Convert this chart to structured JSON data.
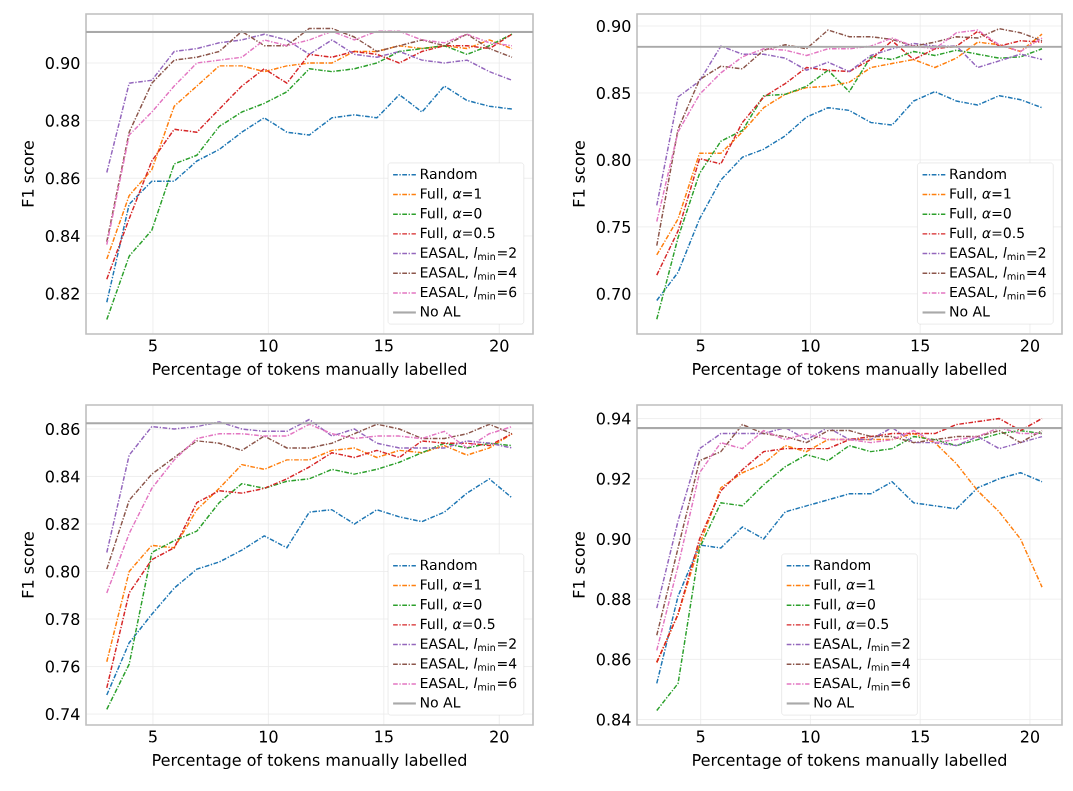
{
  "chart_data": [
    {
      "type": "line",
      "xlabel": "Percentage of tokens manually labelled",
      "ylabel": "F1 score",
      "xlim": [
        2.1,
        21.46
      ],
      "ylim": [
        0.806,
        0.917
      ],
      "xticks": [
        5,
        10,
        15,
        20
      ],
      "yticks": [
        {
          "value": 0.82,
          "label": "0.82"
        },
        {
          "value": 0.84,
          "label": "0.84"
        },
        {
          "value": 0.86,
          "label": "0.86"
        },
        {
          "value": 0.88,
          "label": "0.88"
        },
        {
          "value": 0.9,
          "label": "0.90"
        }
      ],
      "grid": true,
      "legend": "bottom right",
      "line_style": "dashdot",
      "x": [
        3,
        3.97,
        4.95,
        5.92,
        6.9,
        7.87,
        8.85,
        9.82,
        10.8,
        11.77,
        12.75,
        13.72,
        14.7,
        15.67,
        16.65,
        17.62,
        18.6,
        19.57,
        20.55
      ],
      "series": [
        {
          "name": "Random",
          "color": "#1f77b4",
          "values": [
            0.817,
            0.851,
            0.859,
            0.859,
            0.866,
            0.87,
            0.876,
            0.881,
            0.876,
            0.875,
            0.881,
            0.882,
            0.881,
            0.889,
            0.883,
            0.892,
            0.887,
            0.885,
            0.884
          ]
        },
        {
          "name": "Full, *α*=1",
          "color": "#ff7f0e",
          "values": [
            0.832,
            0.854,
            0.863,
            0.885,
            0.892,
            0.899,
            0.899,
            0.897,
            0.899,
            0.9,
            0.9,
            0.904,
            0.904,
            0.906,
            0.905,
            0.906,
            0.905,
            0.908,
            0.905
          ]
        },
        {
          "name": "Full, *α*=0",
          "color": "#2ca02c",
          "values": [
            0.811,
            0.833,
            0.842,
            0.865,
            0.868,
            0.878,
            0.883,
            0.886,
            0.89,
            0.898,
            0.897,
            0.898,
            0.9,
            0.904,
            0.905,
            0.906,
            0.903,
            0.906,
            0.91
          ]
        },
        {
          "name": "Full, *α*=0.5",
          "color": "#d62728",
          "values": [
            0.825,
            0.846,
            0.866,
            0.877,
            0.876,
            0.884,
            0.892,
            0.898,
            0.893,
            0.903,
            0.902,
            0.904,
            0.903,
            0.9,
            0.904,
            0.906,
            0.906,
            0.905,
            0.91
          ]
        },
        {
          "name": "EASAL, *l*$_{min}$=2",
          "color": "#9467bd",
          "values": [
            0.862,
            0.893,
            0.894,
            0.904,
            0.905,
            0.907,
            0.908,
            0.91,
            0.908,
            0.903,
            0.908,
            0.903,
            0.902,
            0.904,
            0.901,
            0.9,
            0.901,
            0.897,
            0.894
          ]
        },
        {
          "name": "EASAL, *l*$_{min}$=4",
          "color": "#8c564b",
          "values": [
            0.838,
            0.876,
            0.893,
            0.901,
            0.902,
            0.904,
            0.911,
            0.906,
            0.906,
            0.912,
            0.912,
            0.909,
            0.904,
            0.906,
            0.908,
            0.906,
            0.91,
            0.905,
            0.902
          ]
        },
        {
          "name": "EASAL, *l*$_{min}$=6",
          "color": "#e377c2",
          "values": [
            0.837,
            0.875,
            0.883,
            0.892,
            0.9,
            0.901,
            0.902,
            0.908,
            0.906,
            0.908,
            0.911,
            0.908,
            0.911,
            0.911,
            0.908,
            0.907,
            0.91,
            0.907,
            0.906
          ]
        }
      ],
      "ref_lines": [
        {
          "axis": "y",
          "value": 0.9108,
          "label": "No AL",
          "color": "#a9a9a9"
        }
      ]
    },
    {
      "type": "line",
      "xlabel": "Percentage of tokens manually labelled",
      "ylabel": "F1 score",
      "xlim": [
        2.1,
        21.46
      ],
      "ylim": [
        0.67,
        0.909
      ],
      "xticks": [
        5,
        10,
        15,
        20
      ],
      "yticks": [
        {
          "value": 0.7,
          "label": "0.70"
        },
        {
          "value": 0.75,
          "label": "0.75"
        },
        {
          "value": 0.8,
          "label": "0.80"
        },
        {
          "value": 0.85,
          "label": "0.85"
        },
        {
          "value": 0.9,
          "label": "0.90"
        }
      ],
      "grid": true,
      "legend": "bottom right",
      "line_style": "dashdot",
      "x": [
        3,
        3.97,
        4.95,
        5.92,
        6.9,
        7.87,
        8.85,
        9.82,
        10.8,
        11.77,
        12.75,
        13.72,
        14.7,
        15.67,
        16.65,
        17.62,
        18.6,
        19.57,
        20.55
      ],
      "series": [
        {
          "name": "Random",
          "color": "#1f77b4",
          "values": [
            0.695,
            0.716,
            0.756,
            0.785,
            0.802,
            0.808,
            0.818,
            0.832,
            0.839,
            0.837,
            0.828,
            0.826,
            0.844,
            0.851,
            0.844,
            0.841,
            0.848,
            0.845,
            0.839
          ]
        },
        {
          "name": "Full, *α*=1",
          "color": "#ff7f0e",
          "values": [
            0.729,
            0.756,
            0.805,
            0.805,
            0.821,
            0.839,
            0.849,
            0.854,
            0.855,
            0.858,
            0.869,
            0.872,
            0.875,
            0.869,
            0.876,
            0.888,
            0.886,
            0.881,
            0.894
          ]
        },
        {
          "name": "Full, *α*=0",
          "color": "#2ca02c",
          "values": [
            0.681,
            0.742,
            0.79,
            0.814,
            0.822,
            0.848,
            0.849,
            0.855,
            0.867,
            0.851,
            0.877,
            0.875,
            0.881,
            0.878,
            0.882,
            0.879,
            0.876,
            0.877,
            0.883
          ]
        },
        {
          "name": "Full, *α*=0.5",
          "color": "#d62728",
          "values": [
            0.714,
            0.747,
            0.801,
            0.797,
            0.828,
            0.847,
            0.857,
            0.869,
            0.867,
            0.866,
            0.875,
            0.889,
            0.875,
            0.883,
            0.885,
            0.896,
            0.885,
            0.889,
            0.888
          ]
        },
        {
          "name": "EASAL, *l*$_{min}$=2",
          "color": "#9467bd",
          "values": [
            0.766,
            0.847,
            0.859,
            0.885,
            0.879,
            0.879,
            0.876,
            0.867,
            0.873,
            0.866,
            0.878,
            0.883,
            0.887,
            0.885,
            0.885,
            0.869,
            0.874,
            0.879,
            0.875
          ]
        },
        {
          "name": "EASAL, *l*$_{min}$=4",
          "color": "#8c564b",
          "values": [
            0.736,
            0.823,
            0.86,
            0.87,
            0.868,
            0.882,
            0.886,
            0.883,
            0.897,
            0.892,
            0.892,
            0.89,
            0.885,
            0.888,
            0.892,
            0.891,
            0.898,
            0.895,
            0.889
          ]
        },
        {
          "name": "EASAL, *l*$_{min}$=6",
          "color": "#e377c2",
          "values": [
            0.754,
            0.821,
            0.849,
            0.865,
            0.877,
            0.883,
            0.882,
            0.878,
            0.883,
            0.883,
            0.885,
            0.891,
            0.885,
            0.883,
            0.895,
            0.897,
            0.886,
            0.881,
            0.891
          ]
        }
      ],
      "ref_lines": [
        {
          "axis": "y",
          "value": 0.8845,
          "label": "No AL",
          "color": "#a9a9a9"
        }
      ]
    },
    {
      "type": "line",
      "xlabel": "Percentage of tokens manually labelled",
      "ylabel": "F1 score",
      "xlim": [
        2.1,
        21.46
      ],
      "ylim": [
        0.7354,
        0.8701
      ],
      "xticks": [
        5,
        10,
        15,
        20
      ],
      "yticks": [
        {
          "value": 0.74,
          "label": "0.74"
        },
        {
          "value": 0.76,
          "label": "0.76"
        },
        {
          "value": 0.78,
          "label": "0.78"
        },
        {
          "value": 0.8,
          "label": "0.80"
        },
        {
          "value": 0.82,
          "label": "0.82"
        },
        {
          "value": 0.84,
          "label": "0.84"
        },
        {
          "value": 0.86,
          "label": "0.86"
        }
      ],
      "grid": true,
      "legend": "bottom right",
      "line_style": "dashdot",
      "x": [
        3,
        3.97,
        4.95,
        5.92,
        6.9,
        7.87,
        8.85,
        9.82,
        10.8,
        11.77,
        12.75,
        13.72,
        14.7,
        15.67,
        16.65,
        17.62,
        18.6,
        19.57,
        20.55
      ],
      "series": [
        {
          "name": "Random",
          "color": "#1f77b4",
          "values": [
            0.748,
            0.77,
            0.782,
            0.793,
            0.801,
            0.804,
            0.809,
            0.815,
            0.81,
            0.825,
            0.826,
            0.82,
            0.826,
            0.823,
            0.821,
            0.825,
            0.833,
            0.839,
            0.831
          ]
        },
        {
          "name": "Full, *α*=1",
          "color": "#ff7f0e",
          "values": [
            0.762,
            0.8,
            0.811,
            0.81,
            0.826,
            0.835,
            0.845,
            0.843,
            0.847,
            0.847,
            0.851,
            0.852,
            0.848,
            0.851,
            0.85,
            0.853,
            0.849,
            0.852,
            0.858
          ]
        },
        {
          "name": "Full, *α*=0",
          "color": "#2ca02c",
          "values": [
            0.742,
            0.761,
            0.808,
            0.813,
            0.817,
            0.829,
            0.837,
            0.835,
            0.838,
            0.839,
            0.843,
            0.841,
            0.843,
            0.846,
            0.85,
            0.854,
            0.852,
            0.854,
            0.853
          ]
        },
        {
          "name": "Full, *α*=0.5",
          "color": "#d62728",
          "values": [
            0.751,
            0.791,
            0.805,
            0.81,
            0.829,
            0.834,
            0.833,
            0.835,
            0.839,
            0.844,
            0.85,
            0.848,
            0.851,
            0.848,
            0.855,
            0.854,
            0.854,
            0.853,
            0.858
          ]
        },
        {
          "name": "EASAL, *l*$_{min}$=2",
          "color": "#9467bd",
          "values": [
            0.808,
            0.849,
            0.861,
            0.86,
            0.861,
            0.863,
            0.86,
            0.859,
            0.859,
            0.864,
            0.857,
            0.86,
            0.854,
            0.852,
            0.852,
            0.852,
            0.855,
            0.854,
            0.852
          ]
        },
        {
          "name": "EASAL, *l*$_{min}$=4",
          "color": "#8c564b",
          "values": [
            0.801,
            0.83,
            0.841,
            0.848,
            0.855,
            0.854,
            0.851,
            0.857,
            0.852,
            0.852,
            0.854,
            0.858,
            0.862,
            0.86,
            0.856,
            0.856,
            0.858,
            0.862,
            0.858
          ]
        },
        {
          "name": "EASAL, *l*$_{min}$=6",
          "color": "#e377c2",
          "values": [
            0.791,
            0.816,
            0.835,
            0.847,
            0.856,
            0.858,
            0.858,
            0.857,
            0.857,
            0.862,
            0.858,
            0.856,
            0.857,
            0.857,
            0.856,
            0.859,
            0.852,
            0.858,
            0.861
          ]
        }
      ],
      "ref_lines": [
        {
          "axis": "y",
          "value": 0.8624,
          "label": "No AL",
          "color": "#a9a9a9"
        }
      ]
    },
    {
      "type": "line",
      "xlabel": "Percentage of tokens manually labelled",
      "ylabel": "F1 score",
      "xlim": [
        2.1,
        21.46
      ],
      "ylim": [
        0.8382,
        0.9445
      ],
      "xticks": [
        5,
        10,
        15,
        20
      ],
      "yticks": [
        {
          "value": 0.84,
          "label": "0.84"
        },
        {
          "value": 0.86,
          "label": "0.86"
        },
        {
          "value": 0.88,
          "label": "0.88"
        },
        {
          "value": 0.9,
          "label": "0.90"
        },
        {
          "value": 0.92,
          "label": "0.92"
        },
        {
          "value": 0.94,
          "label": "0.94"
        }
      ],
      "grid": true,
      "legend": "bottom",
      "line_style": "dashdot",
      "x": [
        3,
        3.97,
        4.95,
        5.92,
        6.9,
        7.87,
        8.85,
        9.82,
        10.8,
        11.77,
        12.75,
        13.72,
        14.7,
        15.67,
        16.65,
        17.62,
        18.6,
        19.57,
        20.55
      ],
      "series": [
        {
          "name": "Random",
          "color": "#1f77b4",
          "values": [
            0.852,
            0.881,
            0.898,
            0.897,
            0.904,
            0.9,
            0.909,
            0.911,
            0.913,
            0.915,
            0.915,
            0.919,
            0.912,
            0.911,
            0.91,
            0.917,
            0.92,
            0.922,
            0.919
          ]
        },
        {
          "name": "Full, *α*=1",
          "color": "#ff7f0e",
          "values": [
            0.859,
            0.875,
            0.898,
            0.917,
            0.922,
            0.925,
            0.931,
            0.929,
            0.933,
            0.933,
            0.933,
            0.933,
            0.935,
            0.932,
            0.925,
            0.916,
            0.909,
            0.9,
            0.884
          ]
        },
        {
          "name": "Full, *α*=0",
          "color": "#2ca02c",
          "values": [
            0.843,
            0.852,
            0.897,
            0.912,
            0.911,
            0.918,
            0.924,
            0.928,
            0.926,
            0.931,
            0.929,
            0.93,
            0.934,
            0.933,
            0.931,
            0.933,
            0.935,
            0.936,
            0.935
          ]
        },
        {
          "name": "Full, *α*=0.5",
          "color": "#d62728",
          "values": [
            0.859,
            0.875,
            0.9,
            0.916,
            0.923,
            0.929,
            0.93,
            0.93,
            0.93,
            0.933,
            0.934,
            0.935,
            0.935,
            0.935,
            0.938,
            0.939,
            0.94,
            0.936,
            0.94
          ]
        },
        {
          "name": "EASAL, *l*$_{min}$=2",
          "color": "#9467bd",
          "values": [
            0.877,
            0.906,
            0.93,
            0.935,
            0.935,
            0.935,
            0.937,
            0.933,
            0.937,
            0.933,
            0.933,
            0.937,
            0.932,
            0.932,
            0.931,
            0.934,
            0.93,
            0.932,
            0.934
          ]
        },
        {
          "name": "EASAL, *l*$_{min}$=4",
          "color": "#8c564b",
          "values": [
            0.868,
            0.897,
            0.926,
            0.929,
            0.938,
            0.935,
            0.934,
            0.932,
            0.936,
            0.936,
            0.934,
            0.934,
            0.932,
            0.933,
            0.934,
            0.934,
            0.936,
            0.932,
            0.936
          ]
        },
        {
          "name": "EASAL, *l*$_{min}$=6",
          "color": "#e377c2",
          "values": [
            0.863,
            0.891,
            0.922,
            0.932,
            0.93,
            0.936,
            0.933,
            0.935,
            0.933,
            0.933,
            0.932,
            0.933,
            0.936,
            0.932,
            0.933,
            0.934,
            0.937,
            0.935,
            0.935
          ]
        }
      ],
      "ref_lines": [
        {
          "axis": "y",
          "value": 0.9368,
          "label": "No AL",
          "color": "#a9a9a9"
        }
      ]
    }
  ]
}
